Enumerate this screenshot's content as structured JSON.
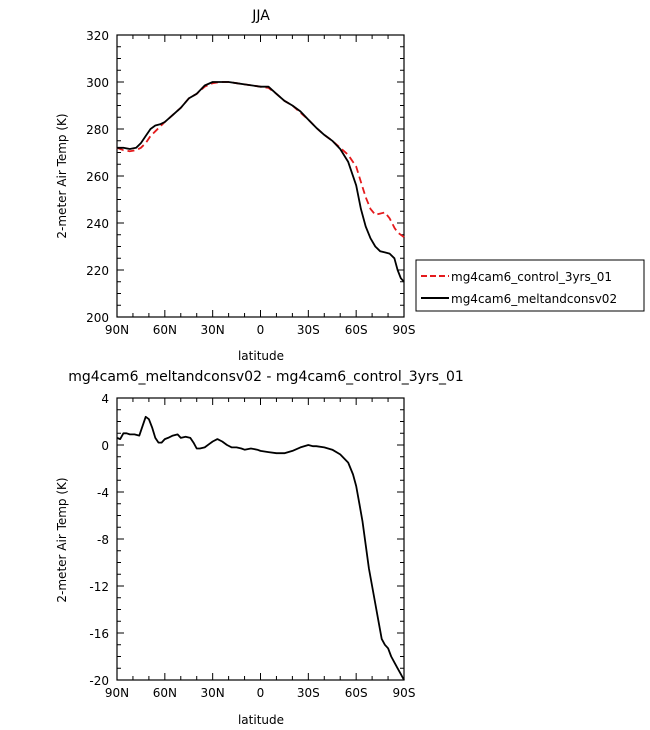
{
  "chart_data": [
    {
      "type": "line",
      "title": "JJA",
      "xlabel": "latitude",
      "ylabel": "2-meter Air Temp (K)",
      "xlim": [
        90,
        -90
      ],
      "ylim": [
        200,
        320
      ],
      "x_tick_values": [
        90,
        60,
        30,
        0,
        -30,
        -60,
        -90
      ],
      "x_tick_labels": [
        "90N",
        "60N",
        "30N",
        "0",
        "30S",
        "60S",
        "90S"
      ],
      "y_ticks": [
        200,
        220,
        240,
        260,
        280,
        300,
        320
      ],
      "grid": false,
      "legend_position": "right-outside",
      "series": [
        {
          "name": "mg4cam6_control_3yrs_01",
          "color": "#e41a1c",
          "dash": "dashed",
          "x": [
            90,
            86,
            82,
            78,
            75,
            72,
            69,
            66,
            63,
            60,
            55,
            50,
            45,
            40,
            35,
            30,
            25,
            20,
            15,
            10,
            5,
            0,
            -5,
            -10,
            -15,
            -20,
            -25,
            -30,
            -35,
            -40,
            -45,
            -50,
            -55,
            -60,
            -63,
            -66,
            -69,
            -72,
            -75,
            -78,
            -81,
            -84,
            -86,
            -88,
            -90
          ],
          "y": [
            272,
            271,
            270.5,
            271,
            272,
            274,
            277,
            279,
            281,
            283,
            286,
            289,
            293,
            295,
            298,
            299.5,
            300,
            300,
            299.5,
            299,
            298.5,
            298,
            297.5,
            295,
            292,
            290,
            287,
            284,
            280.5,
            277.5,
            275,
            272,
            269,
            264,
            257.5,
            251,
            246,
            243.5,
            244,
            244.5,
            242,
            238,
            236,
            235,
            234
          ]
        },
        {
          "name": "mg4cam6_meltandconsv02",
          "color": "#000000",
          "dash": "solid",
          "x": [
            90,
            86,
            82,
            78,
            75,
            72,
            69,
            66,
            63,
            60,
            55,
            50,
            45,
            40,
            35,
            30,
            25,
            20,
            15,
            10,
            5,
            0,
            -5,
            -10,
            -15,
            -20,
            -25,
            -30,
            -35,
            -40,
            -45,
            -50,
            -55,
            -60,
            -63,
            -66,
            -69,
            -72,
            -75,
            -78,
            -81,
            -84,
            -86,
            -88,
            -90
          ],
          "y": [
            272,
            272,
            271.5,
            272,
            274,
            277,
            280,
            281.5,
            282,
            283,
            286,
            289,
            293,
            295,
            298.5,
            300,
            300,
            300,
            299.5,
            299,
            298.5,
            298,
            298,
            295,
            292,
            290,
            287.5,
            284,
            280.5,
            277.5,
            275,
            271.5,
            266,
            256,
            246,
            238.5,
            233.5,
            230,
            228,
            227.5,
            227,
            225,
            220,
            216.5,
            215
          ]
        }
      ]
    },
    {
      "type": "line",
      "title": "mg4cam6_meltandconsv02 - mg4cam6_control_3yrs_01",
      "xlabel": "latitude",
      "ylabel": "2-meter Air Temp (K)",
      "xlim": [
        90,
        -90
      ],
      "ylim": [
        -20,
        4
      ],
      "x_tick_values": [
        90,
        60,
        30,
        0,
        -30,
        -60,
        -90
      ],
      "x_tick_labels": [
        "90N",
        "60N",
        "30N",
        "0",
        "30S",
        "60S",
        "90S"
      ],
      "y_ticks": [
        -20,
        -16,
        -12,
        -8,
        -4,
        0,
        4
      ],
      "grid": false,
      "series": [
        {
          "color": "#000000",
          "dash": "solid",
          "x": [
            90,
            88,
            86,
            84,
            82,
            79,
            76,
            74,
            72,
            70,
            68,
            66,
            64,
            62,
            60,
            58,
            55,
            52,
            50,
            47,
            44,
            42,
            40,
            38,
            35,
            32,
            30,
            27,
            24,
            21,
            18,
            15,
            12,
            10,
            6,
            2,
            0,
            -5,
            -10,
            -15,
            -20,
            -25,
            -30,
            -33,
            -35,
            -40,
            -45,
            -50,
            -55,
            -58,
            -60,
            -62,
            -64,
            -66,
            -68,
            -70,
            -72,
            -74,
            -76,
            -78,
            -80,
            -82,
            -84,
            -86,
            -88,
            -90
          ],
          "y": [
            0.6,
            0.5,
            1.0,
            1.0,
            0.9,
            0.9,
            0.8,
            1.6,
            2.4,
            2.2,
            1.5,
            0.6,
            0.2,
            0.2,
            0.5,
            0.6,
            0.8,
            0.9,
            0.6,
            0.7,
            0.6,
            0.2,
            -0.3,
            -0.3,
            -0.2,
            0.1,
            0.3,
            0.5,
            0.3,
            0.0,
            -0.2,
            -0.2,
            -0.3,
            -0.4,
            -0.3,
            -0.4,
            -0.5,
            -0.6,
            -0.7,
            -0.7,
            -0.5,
            -0.2,
            0.0,
            -0.1,
            -0.1,
            -0.2,
            -0.4,
            -0.8,
            -1.5,
            -2.5,
            -3.5,
            -5.0,
            -6.5,
            -8.5,
            -10.5,
            -12.0,
            -13.5,
            -15.0,
            -16.5,
            -17.0,
            -17.3,
            -18.0,
            -18.5,
            -19.0,
            -19.5,
            -20.0
          ]
        }
      ]
    }
  ]
}
